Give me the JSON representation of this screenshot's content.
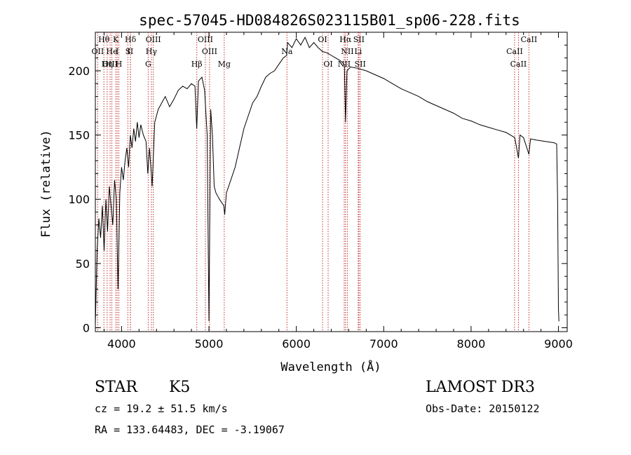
{
  "chart_data": {
    "type": "line",
    "title": "spec-57045-HD084826S023115B01_sp06-228.fits",
    "xlabel": "Wavelength (Å)",
    "ylabel": "Flux (relative)",
    "xlim": [
      3700,
      9100
    ],
    "ylim": [
      -3,
      230
    ],
    "grid": false,
    "legend": "none",
    "x_ticks": [
      4000,
      5000,
      6000,
      7000,
      8000,
      9000
    ],
    "y_ticks": [
      0,
      50,
      100,
      150,
      200
    ],
    "series": [
      {
        "points": [
          [
            3700,
            2
          ],
          [
            3720,
            60
          ],
          [
            3740,
            85
          ],
          [
            3760,
            70
          ],
          [
            3780,
            95
          ],
          [
            3800,
            60
          ],
          [
            3820,
            100
          ],
          [
            3840,
            75
          ],
          [
            3860,
            110
          ],
          [
            3880,
            95
          ],
          [
            3900,
            80
          ],
          [
            3920,
            115
          ],
          [
            3940,
            100
          ],
          [
            3960,
            30
          ],
          [
            3980,
            105
          ],
          [
            4000,
            125
          ],
          [
            4020,
            115
          ],
          [
            4040,
            130
          ],
          [
            4060,
            140
          ],
          [
            4080,
            125
          ],
          [
            4100,
            150
          ],
          [
            4120,
            140
          ],
          [
            4140,
            155
          ],
          [
            4160,
            145
          ],
          [
            4180,
            160
          ],
          [
            4200,
            148
          ],
          [
            4220,
            158
          ],
          [
            4250,
            150
          ],
          [
            4280,
            145
          ],
          [
            4300,
            120
          ],
          [
            4320,
            140
          ],
          [
            4350,
            110
          ],
          [
            4380,
            160
          ],
          [
            4420,
            170
          ],
          [
            4460,
            175
          ],
          [
            4500,
            180
          ],
          [
            4550,
            172
          ],
          [
            4600,
            178
          ],
          [
            4650,
            185
          ],
          [
            4700,
            188
          ],
          [
            4750,
            186
          ],
          [
            4800,
            190
          ],
          [
            4840,
            188
          ],
          [
            4860,
            155
          ],
          [
            4880,
            192
          ],
          [
            4920,
            195
          ],
          [
            4950,
            185
          ],
          [
            4980,
            150
          ],
          [
            5000,
            5
          ],
          [
            5020,
            170
          ],
          [
            5040,
            150
          ],
          [
            5060,
            110
          ],
          [
            5080,
            105
          ],
          [
            5120,
            100
          ],
          [
            5170,
            95
          ],
          [
            5180,
            88
          ],
          [
            5200,
            105
          ],
          [
            5250,
            115
          ],
          [
            5300,
            125
          ],
          [
            5350,
            140
          ],
          [
            5400,
            155
          ],
          [
            5450,
            165
          ],
          [
            5500,
            175
          ],
          [
            5550,
            180
          ],
          [
            5600,
            188
          ],
          [
            5650,
            195
          ],
          [
            5700,
            198
          ],
          [
            5750,
            200
          ],
          [
            5800,
            205
          ],
          [
            5850,
            210
          ],
          [
            5890,
            212
          ],
          [
            5900,
            222
          ],
          [
            5950,
            218
          ],
          [
            6000,
            225
          ],
          [
            6050,
            220
          ],
          [
            6100,
            226
          ],
          [
            6150,
            218
          ],
          [
            6200,
            222
          ],
          [
            6250,
            218
          ],
          [
            6300,
            215
          ],
          [
            6350,
            214
          ],
          [
            6400,
            212
          ],
          [
            6450,
            210
          ],
          [
            6500,
            208
          ],
          [
            6550,
            205
          ],
          [
            6563,
            160
          ],
          [
            6580,
            200
          ],
          [
            6620,
            203
          ],
          [
            6700,
            202
          ],
          [
            6800,
            200
          ],
          [
            6900,
            197
          ],
          [
            7000,
            194
          ],
          [
            7100,
            190
          ],
          [
            7200,
            186
          ],
          [
            7300,
            183
          ],
          [
            7400,
            180
          ],
          [
            7500,
            176
          ],
          [
            7600,
            173
          ],
          [
            7700,
            170
          ],
          [
            7800,
            167
          ],
          [
            7900,
            163
          ],
          [
            8000,
            161
          ],
          [
            8100,
            158
          ],
          [
            8200,
            156
          ],
          [
            8300,
            154
          ],
          [
            8400,
            152
          ],
          [
            8450,
            150
          ],
          [
            8500,
            148
          ],
          [
            8542,
            132
          ],
          [
            8560,
            150
          ],
          [
            8600,
            148
          ],
          [
            8662,
            135
          ],
          [
            8680,
            147
          ],
          [
            8750,
            146
          ],
          [
            8850,
            145
          ],
          [
            8950,
            144
          ],
          [
            8980,
            143
          ],
          [
            8990,
            100
          ],
          [
            9000,
            15
          ],
          [
            9005,
            5
          ]
        ]
      }
    ],
    "lines": [
      {
        "label": "Hθ",
        "x": 3798,
        "row": 0
      },
      {
        "label": "OII",
        "x": 3727,
        "row": 1
      },
      {
        "label": "OIII",
        "x": 3869,
        "row": 2
      },
      {
        "label": "He",
        "x": 3889,
        "row": 1
      },
      {
        "label": "Hη",
        "x": 3835,
        "row": 2
      },
      {
        "label": "K",
        "x": 3934,
        "row": 0
      },
      {
        "label": "I",
        "x": 3950,
        "row": 1
      },
      {
        "label": "H",
        "x": 3969,
        "row": 2
      },
      {
        "label": "S",
        "x": 4072,
        "row": 1
      },
      {
        "label": "II",
        "x": 4100,
        "row": 1
      },
      {
        "label": "Hδ",
        "x": 4102,
        "row": 0
      },
      {
        "label": "OIII",
        "x": 4363,
        "row": 0
      },
      {
        "label": "Hγ",
        "x": 4341,
        "row": 1
      },
      {
        "label": "G",
        "x": 4305,
        "row": 2
      },
      {
        "label": "Hβ",
        "x": 4861,
        "row": 2
      },
      {
        "label": "OIII",
        "x": 4959,
        "row": 0
      },
      {
        "label": "OIII",
        "x": 5007,
        "row": 1
      },
      {
        "label": "Mg",
        "x": 5175,
        "row": 2
      },
      {
        "label": "Na",
        "x": 5893,
        "row": 1
      },
      {
        "label": "OI",
        "x": 6300,
        "row": 0
      },
      {
        "label": "OI",
        "x": 6364,
        "row": 2
      },
      {
        "label": "Hα",
        "x": 6563,
        "row": 0
      },
      {
        "label": "SII",
        "x": 6716,
        "row": 0
      },
      {
        "label": "NII",
        "x": 6584,
        "row": 1
      },
      {
        "label": "Li",
        "x": 6708,
        "row": 1
      },
      {
        "label": "NII",
        "x": 6548,
        "row": 2
      },
      {
        "label": "SII",
        "x": 6731,
        "row": 2
      },
      {
        "label": "CaII",
        "x": 8662,
        "row": 0
      },
      {
        "label": "CaII",
        "x": 8498,
        "row": 1
      },
      {
        "label": "CaII",
        "x": 8542,
        "row": 2
      }
    ]
  },
  "info": {
    "class_label": "STAR",
    "subclass": "K5",
    "survey": "LAMOST DR3",
    "cz": "cz = 19.2 ± 51.5 km/s",
    "obs_date": "Obs-Date: 20150122",
    "coords": "RA = 133.64483, DEC =  -3.19067"
  }
}
